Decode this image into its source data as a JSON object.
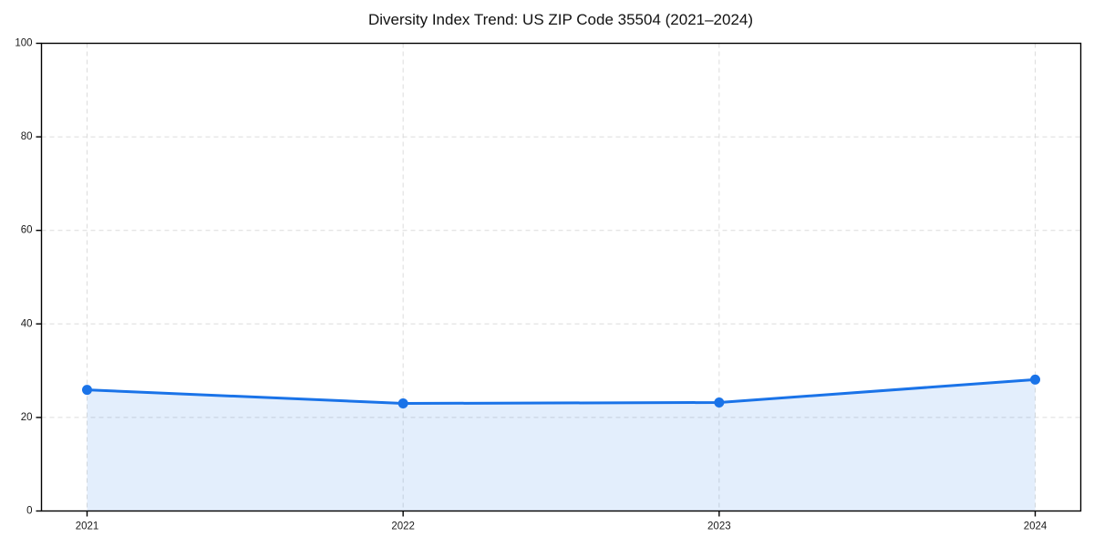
{
  "chart_data": {
    "type": "area",
    "title": "Diversity Index Trend: US ZIP Code 35504 (2021–2024)",
    "series": [
      {
        "name": "Diversity Index",
        "values": [
          25.9,
          23.0,
          23.2,
          28.1
        ]
      }
    ],
    "categories": [
      "2021",
      "2022",
      "2023",
      "2024"
    ],
    "xlabel": "",
    "ylabel": "",
    "ylim": [
      0,
      100
    ],
    "yticks": [
      0,
      20,
      40,
      60,
      80,
      100
    ],
    "grid": "dashed",
    "legend": "none",
    "marker": "circle",
    "colors": {
      "line": "#1a73e8",
      "marker": "#1a73e8",
      "fill": "rgba(26,115,232,0.12)",
      "grid": "#dcdcdc",
      "spine": "#000000",
      "tick_text": "#1a1a1a",
      "title_text": "#111111",
      "background": "#ffffff"
    }
  }
}
